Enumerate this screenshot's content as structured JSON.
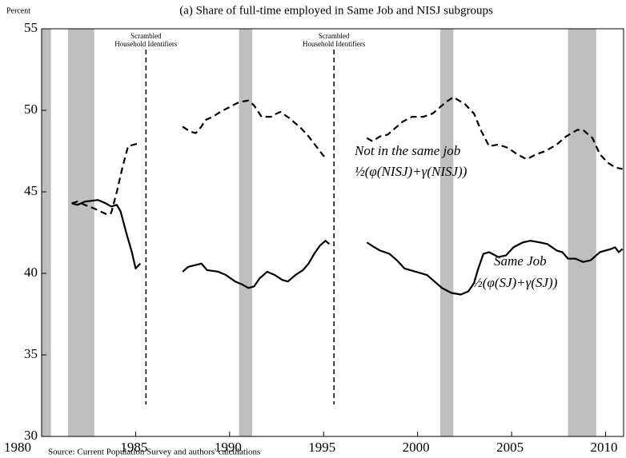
{
  "chart_data": {
    "type": "line",
    "title": "(a) Share of full-time employed in Same Job and NISJ subgroups",
    "y_label": "Percent",
    "source": "Source: Current Population Survey and authors' calculations",
    "xlim": [
      1980,
      2011
    ],
    "xticks": [
      1980,
      1985,
      1990,
      1995,
      2000,
      2005,
      2010
    ],
    "ylim": [
      30,
      55
    ],
    "yticks": [
      30,
      35,
      40,
      45,
      50,
      55
    ],
    "recessions": [
      [
        1980.0,
        1980.5
      ],
      [
        1981.4,
        1982.8
      ],
      [
        1990.5,
        1991.2
      ],
      [
        2001.2,
        2001.9
      ],
      [
        2008.0,
        2009.5
      ]
    ],
    "recession_color": "#bfbfbf",
    "vlines": [
      {
        "x": 1985.55,
        "label": [
          "Scrambled",
          "Household Identifiers"
        ]
      },
      {
        "x": 1995.55,
        "label": [
          "Scrambled",
          "Household Identifiers"
        ]
      }
    ],
    "series": [
      {
        "name": "Not in the same job",
        "formula": "½(φ(NISJ)+γ(NISJ))",
        "color": "#000000",
        "style": "dashed",
        "x": [
          1981.6,
          1981.9,
          1982.3,
          1982.75,
          1983.5,
          1983.7,
          1984.0,
          1984.3,
          1984.6,
          1985.25,
          1986.5,
          1987.5,
          1987.9,
          1988.2,
          1988.5,
          1988.7,
          1989.1,
          1989.5,
          1990.0,
          1990.5,
          1991.0,
          1991.3,
          1991.7,
          1992.2,
          1992.5,
          1992.7,
          1993.2,
          1993.8,
          1994.2,
          1994.6,
          1995.0,
          1995.2,
          1996.3,
          1997.3,
          1997.6,
          1998.0,
          1998.4,
          1998.8,
          1999.2,
          1999.7,
          2000.3,
          2000.8,
          2001.2,
          2001.5,
          2001.9,
          2002.5,
          2003.0,
          2003.4,
          2003.8,
          2004.3,
          2004.8,
          2005.3,
          2005.8,
          2006.3,
          2006.8,
          2007.4,
          2007.9,
          2008.5,
          2008.8,
          2009.3,
          2009.7,
          2010.1,
          2010.5,
          2010.9
        ],
        "values": [
          44.3,
          44.4,
          44.2,
          44.0,
          43.6,
          43.7,
          45.0,
          46.5,
          47.8,
          48.0,
          null,
          49.0,
          48.7,
          48.6,
          49.0,
          49.4,
          49.6,
          49.9,
          50.2,
          50.5,
          50.6,
          50.3,
          49.6,
          49.6,
          49.8,
          49.9,
          49.5,
          48.9,
          48.4,
          47.8,
          47.2,
          47.4,
          null,
          48.3,
          48.1,
          48.4,
          48.5,
          48.9,
          49.3,
          49.6,
          49.6,
          49.8,
          50.2,
          50.5,
          50.8,
          50.4,
          49.8,
          48.7,
          47.8,
          47.9,
          47.7,
          47.3,
          47.0,
          47.3,
          47.5,
          47.9,
          48.4,
          48.8,
          48.8,
          48.3,
          47.3,
          46.8,
          46.5,
          46.4
        ]
      },
      {
        "name": "Same Job",
        "formula": "½(φ(SJ)+γ(SJ))",
        "color": "#000000",
        "style": "solid",
        "x": [
          1981.6,
          1981.9,
          1982.3,
          1983.0,
          1983.4,
          1983.7,
          1984.0,
          1984.2,
          1984.5,
          1984.8,
          1985.0,
          1985.25,
          1986.5,
          1987.5,
          1987.8,
          1988.5,
          1988.8,
          1989.4,
          1989.8,
          1990.3,
          1990.7,
          1991.0,
          1991.3,
          1991.6,
          1992.0,
          1992.4,
          1992.8,
          1993.1,
          1993.5,
          1993.9,
          1994.2,
          1994.5,
          1994.8,
          1995.1,
          1995.3,
          1996.3,
          1997.3,
          1997.7,
          1998.0,
          1998.5,
          1998.9,
          1999.3,
          1999.9,
          2000.5,
          2000.9,
          2001.3,
          2001.8,
          2002.3,
          2002.7,
          2003.0,
          2003.2,
          2003.5,
          2003.8,
          2004.3,
          2004.7,
          2005.1,
          2005.6,
          2006.0,
          2006.5,
          2006.9,
          2007.4,
          2007.7,
          2008.0,
          2008.4,
          2008.8,
          2009.2,
          2009.7,
          2010.3,
          2010.5,
          2010.7,
          2010.9
        ],
        "values": [
          44.3,
          44.2,
          44.4,
          44.5,
          44.3,
          44.1,
          44.2,
          43.8,
          42.5,
          41.3,
          40.3,
          40.6,
          null,
          40.1,
          40.4,
          40.6,
          40.2,
          40.1,
          39.9,
          39.5,
          39.3,
          39.1,
          39.2,
          39.7,
          40.1,
          39.9,
          39.6,
          39.5,
          39.9,
          40.2,
          40.6,
          41.2,
          41.7,
          42.0,
          41.8,
          null,
          41.9,
          41.6,
          41.4,
          41.2,
          40.8,
          40.3,
          40.1,
          39.9,
          39.5,
          39.1,
          38.8,
          38.7,
          38.9,
          39.4,
          40.2,
          41.2,
          41.3,
          41.0,
          41.1,
          41.6,
          41.9,
          42.0,
          41.9,
          41.8,
          41.4,
          41.3,
          40.9,
          40.9,
          40.7,
          40.8,
          41.3,
          41.5,
          41.6,
          41.3,
          41.5
        ]
      }
    ]
  }
}
